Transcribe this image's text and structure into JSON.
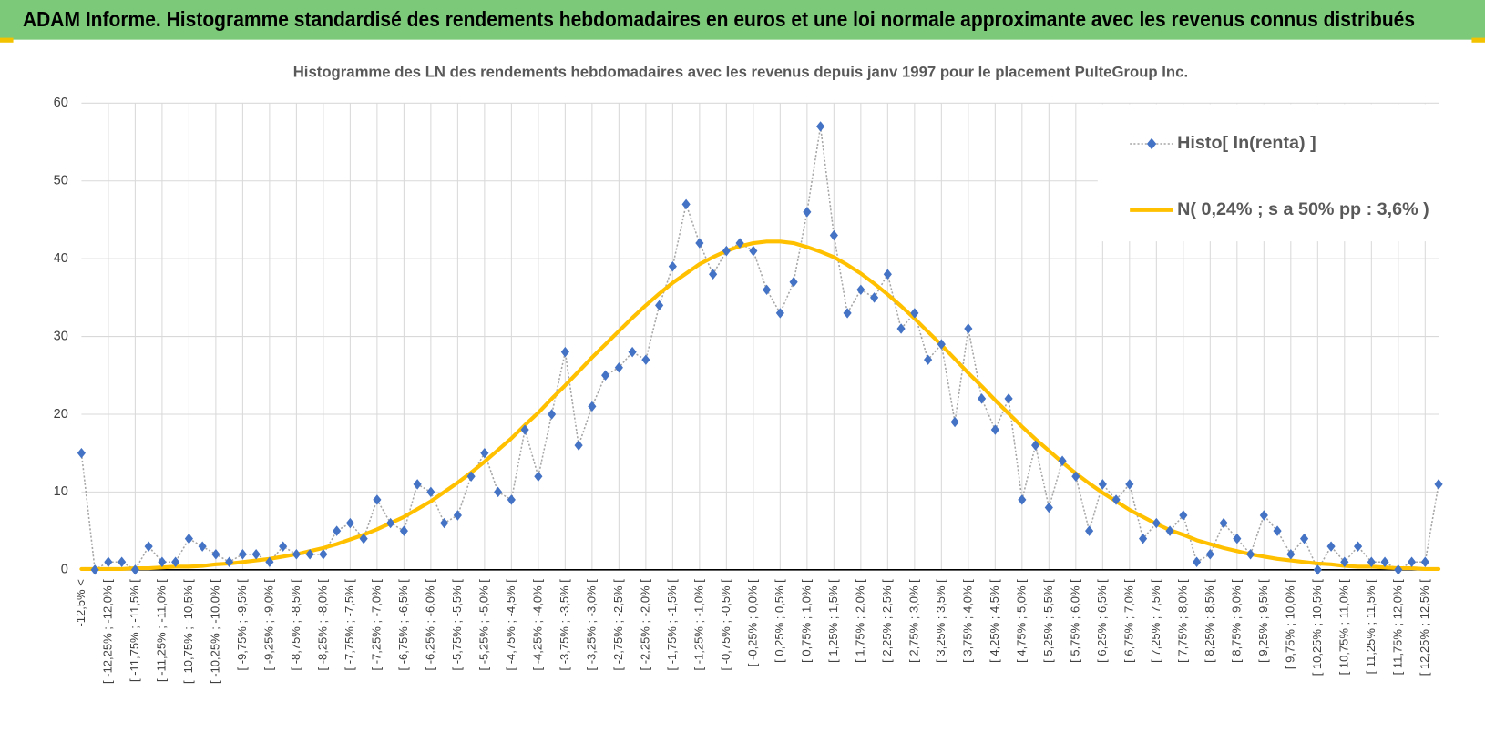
{
  "page_title": "ADAM Informe. Histogramme standardisé des rendements hebdomadaires en euros et une loi normale approximante avec les revenus connus distribués",
  "chart_data": {
    "type": "line",
    "title": "Histogramme des LN des rendements hebdomadaires avec les revenus depuis janv 1997 pour le placement PulteGroup Inc.",
    "categories": [
      "-12,5% <",
      null,
      "[ -12,25% ; -12,0% [",
      null,
      "[ -11,75% ; -11,5% [",
      null,
      "[ -11,25% ; -11,0% [",
      null,
      "[ -10,75% ; -10,5% [",
      null,
      "[ -10,25% ; -10,0% [",
      null,
      "[ -9,75% ; -9,5% [",
      null,
      "[ -9,25% ; -9,0% [",
      null,
      "[ -8,75% ; -8,5% [",
      null,
      "[ -8,25% ; -8,0% [",
      null,
      "[ -7,75% ; -7,5% [",
      null,
      "[ -7,25% ; -7,0% [",
      null,
      "[ -6,75% ; -6,5% [",
      null,
      "[ -6,25% ; -6,0% [",
      null,
      "[ -5,75% ; -5,5% [",
      null,
      "[ -5,25% ; -5,0% [",
      null,
      "[ -4,75% ; -4,5% [",
      null,
      "[ -4,25% ; -4,0% [",
      null,
      "[ -3,75% ; -3,5% [",
      null,
      "[ -3,25% ; -3,0% [",
      null,
      "[ -2,75% ; -2,5% [",
      null,
      "[ -2,25% ; -2,0% [",
      null,
      "[ -1,75% ; -1,5% [",
      null,
      "[ -1,25% ; -1,0% [",
      null,
      "[ -0,75% ; -0,5% [",
      null,
      "[ -0,25% ; 0,0% [",
      null,
      "[ 0,25% ; 0,5% [",
      null,
      "[ 0,75% ; 1,0% [",
      null,
      "[ 1,25% ; 1,5% [",
      null,
      "[ 1,75% ; 2,0% [",
      null,
      "[ 2,25% ; 2,5% [",
      null,
      "[ 2,75% ; 3,0% [",
      null,
      "[ 3,25% ; 3,5% [",
      null,
      "[ 3,75% ; 4,0% [",
      null,
      "[ 4,25% ; 4,5% [",
      null,
      "[ 4,75% ; 5,0% [",
      null,
      "[ 5,25% ; 5,5% [",
      null,
      "[ 5,75% ; 6,0% [",
      null,
      "[ 6,25% ; 6,5% [",
      null,
      "[ 6,75% ; 7,0% [",
      null,
      "[ 7,25% ; 7,5% [",
      null,
      "[ 7,75% ; 8,0% [",
      null,
      "[ 8,25% ; 8,5% [",
      null,
      "[ 8,75% ; 9,0% [",
      null,
      "[ 9,25% ; 9,5% [",
      null,
      "[ 9,75% ; 10,0% [",
      null,
      "[ 10,25% ; 10,5% [",
      null,
      "[ 10,75% ; 11,0% [",
      null,
      "[ 11,25% ; 11,5% [",
      null,
      "[ 11,75% ; 12,0% [",
      null,
      "[ 12,25% ; 12,5% [",
      null
    ],
    "series": [
      {
        "name": "Histo[ ln(renta) ]",
        "color": "#4472c4",
        "line_color": "#a6a6a6",
        "marker": "diamond",
        "values": [
          15,
          0,
          1,
          1,
          0,
          3,
          1,
          1,
          4,
          3,
          2,
          1,
          2,
          2,
          1,
          3,
          2,
          2,
          2,
          5,
          6,
          4,
          9,
          6,
          5,
          11,
          10,
          6,
          7,
          12,
          15,
          10,
          9,
          18,
          12,
          20,
          28,
          16,
          21,
          25,
          26,
          28,
          27,
          34,
          39,
          47,
          42,
          38,
          41,
          42,
          41,
          36,
          33,
          37,
          46,
          57,
          43,
          33,
          36,
          35,
          38,
          31,
          33,
          27,
          29,
          19,
          31,
          22,
          18,
          22,
          9,
          16,
          8,
          14,
          12,
          5,
          11,
          9,
          11,
          4,
          6,
          5,
          7,
          1,
          2,
          6,
          4,
          2,
          7,
          5,
          2,
          4,
          0,
          3,
          1,
          3,
          1,
          1,
          0,
          1,
          1,
          11
        ]
      },
      {
        "name": "N( 0,24% ; s a 50% pp : 3,6% )",
        "color": "#ffc000",
        "values": [
          0.1,
          0.1,
          0.1,
          0.1,
          0.2,
          0.2,
          0.3,
          0.4,
          0.4,
          0.5,
          0.7,
          0.8,
          1.0,
          1.2,
          1.4,
          1.7,
          2.0,
          2.4,
          2.8,
          3.3,
          3.9,
          4.5,
          5.2,
          6.0,
          6.8,
          7.8,
          8.8,
          10.0,
          11.2,
          12.5,
          13.9,
          15.4,
          16.9,
          18.6,
          20.2,
          22.0,
          23.7,
          25.5,
          27.3,
          29.0,
          30.7,
          32.4,
          34.0,
          35.5,
          36.9,
          38.1,
          39.3,
          40.2,
          41.0,
          41.6,
          42.0,
          42.2,
          42.2,
          42.0,
          41.5,
          40.9,
          40.2,
          39.2,
          38.1,
          36.8,
          35.4,
          33.9,
          32.3,
          30.6,
          28.9,
          27.1,
          25.3,
          23.6,
          21.8,
          20.1,
          18.4,
          16.8,
          15.3,
          13.8,
          12.4,
          11.1,
          9.9,
          8.8,
          7.7,
          6.8,
          5.9,
          5.1,
          4.5,
          3.8,
          3.3,
          2.8,
          2.4,
          2.0,
          1.7,
          1.4,
          1.2,
          1.0,
          0.8,
          0.7,
          0.5,
          0.4,
          0.4,
          0.3,
          0.2,
          0.2,
          0.1,
          0.1
        ]
      }
    ],
    "ylim": [
      0,
      60
    ],
    "yticks": [
      0,
      10,
      20,
      30,
      40,
      50,
      60
    ],
    "grid": true,
    "legend": "top-right"
  }
}
